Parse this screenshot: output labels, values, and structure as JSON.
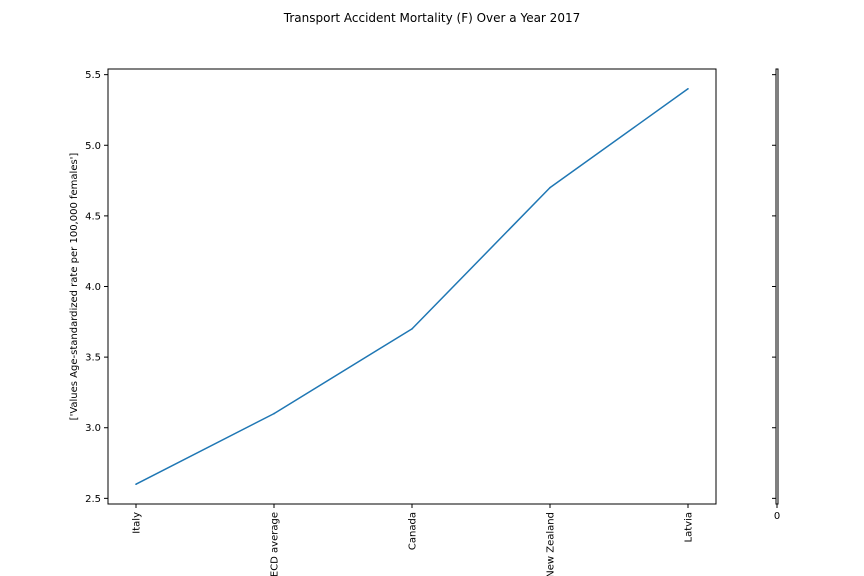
{
  "chart_data": {
    "type": "line",
    "title": "Transport Accident Mortality (F) Over a Year 2017",
    "xlabel": "",
    "ylabel": "['Values  Age-standardized rate per 100,000 females']",
    "categories": [
      "Italy",
      "OECD average",
      "Canada",
      "New Zealand",
      "Latvia"
    ],
    "series": [
      {
        "values": [
          2.6,
          3.1,
          3.7,
          4.7,
          5.4
        ],
        "color": "#1f77b4"
      }
    ],
    "yticks": [
      2.5,
      3.0,
      3.5,
      4.0,
      4.5,
      5.0,
      5.5
    ],
    "ytick_labels": [
      "2.5",
      "3.0",
      "3.5",
      "4.0",
      "4.5",
      "5.0",
      "5.5"
    ],
    "ylim": [
      2.46,
      5.54
    ],
    "grid": false,
    "legend": "none",
    "side_axis": {
      "tick_label": "0"
    }
  }
}
